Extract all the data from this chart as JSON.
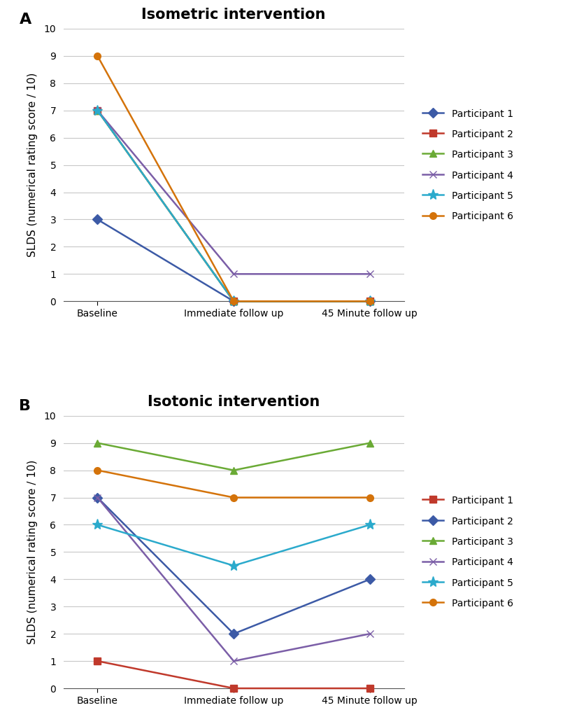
{
  "isometric": {
    "title": "Isometric intervention",
    "participants": [
      {
        "label": "Participant 1",
        "color": "#3c5aa6",
        "marker": "D",
        "values": [
          3,
          0,
          0
        ]
      },
      {
        "label": "Participant 2",
        "color": "#c0392b",
        "marker": "s",
        "values": [
          7,
          0,
          0
        ]
      },
      {
        "label": "Participant 3",
        "color": "#6aaa35",
        "marker": "^",
        "values": [
          7,
          0,
          0
        ]
      },
      {
        "label": "Participant 4",
        "color": "#7b5ea7",
        "marker": "x",
        "values": [
          7,
          1,
          1
        ]
      },
      {
        "label": "Participant 5",
        "color": "#2baacc",
        "marker": "*",
        "values": [
          7,
          0,
          0
        ]
      },
      {
        "label": "Participant 6",
        "color": "#d4730a",
        "marker": "o",
        "values": [
          9,
          0,
          0
        ]
      }
    ]
  },
  "isotonic": {
    "title": "Isotonic intervention",
    "participants": [
      {
        "label": "Participant 1",
        "color": "#c0392b",
        "marker": "s",
        "values": [
          1,
          0,
          0
        ]
      },
      {
        "label": "Participant 2",
        "color": "#3c5aa6",
        "marker": "D",
        "values": [
          7,
          2,
          4
        ]
      },
      {
        "label": "Participant 3",
        "color": "#6aaa35",
        "marker": "^",
        "values": [
          9,
          8,
          9
        ]
      },
      {
        "label": "Participant 4",
        "color": "#7b5ea7",
        "marker": "x",
        "values": [
          7,
          1,
          2
        ]
      },
      {
        "label": "Participant 5",
        "color": "#2baacc",
        "marker": "*",
        "values": [
          6,
          4.5,
          6
        ]
      },
      {
        "label": "Participant 6",
        "color": "#d4730a",
        "marker": "o",
        "values": [
          8,
          7,
          7
        ]
      }
    ]
  },
  "x_labels": [
    "Baseline",
    "Immediate follow up",
    "45 Minute follow up"
  ],
  "ylabel": "SLDS (numerical rating score / 10)",
  "ylim": [
    0,
    10
  ],
  "yticks": [
    0,
    1,
    2,
    3,
    4,
    5,
    6,
    7,
    8,
    9,
    10
  ],
  "label_A": "A",
  "label_B": "B",
  "title_fontsize": 15,
  "label_fontsize": 11,
  "tick_fontsize": 10,
  "legend_fontsize": 10,
  "line_width": 1.8,
  "marker_size": 7,
  "star_size": 11
}
